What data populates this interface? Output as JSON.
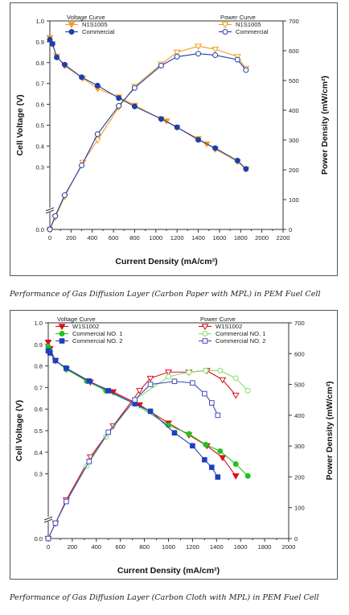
{
  "captions": [
    "Performance of Gas Diffusion Layer (Carbon Paper with MPL) in PEM Fuel Cell",
    "Performance of Gas Diffusion Layer (Carbon Cloth with MPL) in PEM Fuel Cell"
  ],
  "chart_data": [
    {
      "type": "line",
      "xlabel": "Current Density (mA/cm²)",
      "ylabel": "Cell Voltage (V)",
      "y2label": "Power Density (mW/cm²)",
      "xlim": [
        0,
        2200
      ],
      "xticks": [
        0,
        200,
        400,
        600,
        800,
        1000,
        1200,
        1400,
        1600,
        1800,
        2000,
        2200
      ],
      "ylim": [
        0.0,
        1.0
      ],
      "yticks": [
        0.0,
        0.3,
        0.4,
        0.5,
        0.6,
        0.7,
        0.8,
        0.9,
        1.0
      ],
      "y_break_after": 0.0,
      "y2lim": [
        0,
        700
      ],
      "y2ticks": [
        0,
        100,
        200,
        300,
        400,
        500,
        600,
        700
      ],
      "legend_left_title": "Voltage Curve",
      "legend_right_title": "Power Curve",
      "series": [
        {
          "name": "N1S1005",
          "axis": "left",
          "marker": "triangle-down",
          "filled": true,
          "color": "#F39C1E",
          "x": [
            0,
            25,
            65,
            140,
            310,
            450,
            650,
            800,
            1050,
            1100,
            1200,
            1400,
            1480,
            1560,
            1770,
            1850
          ],
          "y": [
            0.92,
            0.89,
            0.83,
            0.785,
            0.725,
            0.675,
            0.635,
            0.595,
            0.53,
            0.52,
            0.49,
            0.435,
            0.41,
            0.385,
            0.325,
            0.29
          ]
        },
        {
          "name": "Commercial",
          "axis": "left",
          "marker": "circle",
          "filled": true,
          "color": "#1F3FA8",
          "x": [
            0,
            25,
            65,
            140,
            300,
            450,
            650,
            800,
            1050,
            1200,
            1400,
            1560,
            1770,
            1850
          ],
          "y": [
            0.91,
            0.89,
            0.825,
            0.79,
            0.73,
            0.69,
            0.63,
            0.59,
            0.53,
            0.49,
            0.43,
            0.39,
            0.33,
            0.29
          ]
        },
        {
          "name": "N1S1005",
          "axis": "right",
          "marker": "triangle-down",
          "filled": false,
          "color": "#F39C1E",
          "x": [
            0,
            50,
            140,
            310,
            450,
            650,
            800,
            1050,
            1200,
            1400,
            1560,
            1770,
            1850
          ],
          "y": [
            0,
            40,
            110,
            225,
            300,
            410,
            480,
            555,
            595,
            615,
            605,
            580,
            540
          ]
        },
        {
          "name": "Commercial",
          "axis": "right",
          "marker": "circle",
          "filled": false,
          "color": "#1F3FA8",
          "x": [
            0,
            50,
            140,
            300,
            450,
            650,
            800,
            1050,
            1200,
            1400,
            1560,
            1770,
            1850
          ],
          "y": [
            0,
            45,
            115,
            215,
            320,
            415,
            475,
            550,
            580,
            590,
            585,
            570,
            535
          ]
        }
      ]
    },
    {
      "type": "line",
      "xlabel": "Current Density (mA/cm²)",
      "ylabel": "Cell Voltage (V)",
      "y2label": "Power Density (mW/cm²)",
      "xlim": [
        0,
        2000
      ],
      "xticks": [
        0,
        200,
        400,
        600,
        800,
        1000,
        1200,
        1400,
        1600,
        1800,
        2000
      ],
      "ylim": [
        0.0,
        1.0
      ],
      "yticks": [
        0.0,
        0.3,
        0.4,
        0.5,
        0.6,
        0.7,
        0.8,
        0.9,
        1.0
      ],
      "y_break_after": 0.0,
      "y2lim": [
        0,
        700
      ],
      "y2ticks": [
        0,
        100,
        200,
        300,
        400,
        500,
        600,
        700
      ],
      "legend_left_title": "Voltage Curve",
      "legend_right_title": "Power Curve",
      "series": [
        {
          "name": "W1S1002",
          "axis": "left",
          "marker": "triangle-down",
          "filled": true,
          "color": "#D8101A",
          "x": [
            0,
            15,
            60,
            150,
            350,
            540,
            760,
            1000,
            1170,
            1320,
            1450,
            1560
          ],
          "y": [
            0.91,
            0.88,
            0.825,
            0.785,
            0.725,
            0.68,
            0.62,
            0.535,
            0.48,
            0.43,
            0.375,
            0.29
          ]
        },
        {
          "name": "Commercial NO. 1",
          "axis": "left",
          "marker": "circle",
          "filled": true,
          "color": "#22C21E",
          "x": [
            0,
            15,
            60,
            150,
            320,
            480,
            720,
            1000,
            1170,
            1310,
            1430,
            1560,
            1660
          ],
          "y": [
            0.89,
            0.87,
            0.825,
            0.785,
            0.73,
            0.685,
            0.625,
            0.525,
            0.485,
            0.435,
            0.405,
            0.345,
            0.29
          ]
        },
        {
          "name": "Commercial NO. 2",
          "axis": "left",
          "marker": "square",
          "filled": true,
          "color": "#1F3FC0",
          "x": [
            0,
            15,
            60,
            150,
            340,
            500,
            720,
            850,
            1050,
            1200,
            1300,
            1360,
            1410
          ],
          "y": [
            0.87,
            0.86,
            0.825,
            0.79,
            0.73,
            0.685,
            0.625,
            0.59,
            0.49,
            0.43,
            0.365,
            0.33,
            0.285
          ]
        },
        {
          "name": "W1S1002",
          "axis": "right",
          "marker": "triangle-down",
          "filled": false,
          "color": "#D8101A",
          "x": [
            0,
            60,
            150,
            350,
            540,
            760,
            850,
            1000,
            1170,
            1320,
            1450,
            1560
          ],
          "y": [
            0,
            50,
            125,
            265,
            365,
            480,
            520,
            540,
            540,
            545,
            515,
            465
          ]
        },
        {
          "name": "Commercial NO. 1",
          "axis": "right",
          "marker": "circle",
          "filled": false,
          "color": "#7FE06A",
          "x": [
            0,
            60,
            150,
            320,
            480,
            720,
            1000,
            1170,
            1310,
            1430,
            1560,
            1660
          ],
          "y": [
            0,
            50,
            120,
            235,
            330,
            450,
            525,
            540,
            545,
            545,
            520,
            480
          ]
        },
        {
          "name": "Commercial NO. 2",
          "axis": "right",
          "marker": "square",
          "filled": false,
          "color": "#4A4AB8",
          "x": [
            0,
            60,
            150,
            340,
            500,
            720,
            850,
            1050,
            1200,
            1300,
            1360,
            1410
          ],
          "y": [
            0,
            50,
            120,
            250,
            345,
            450,
            500,
            510,
            505,
            470,
            440,
            400
          ]
        }
      ]
    }
  ]
}
